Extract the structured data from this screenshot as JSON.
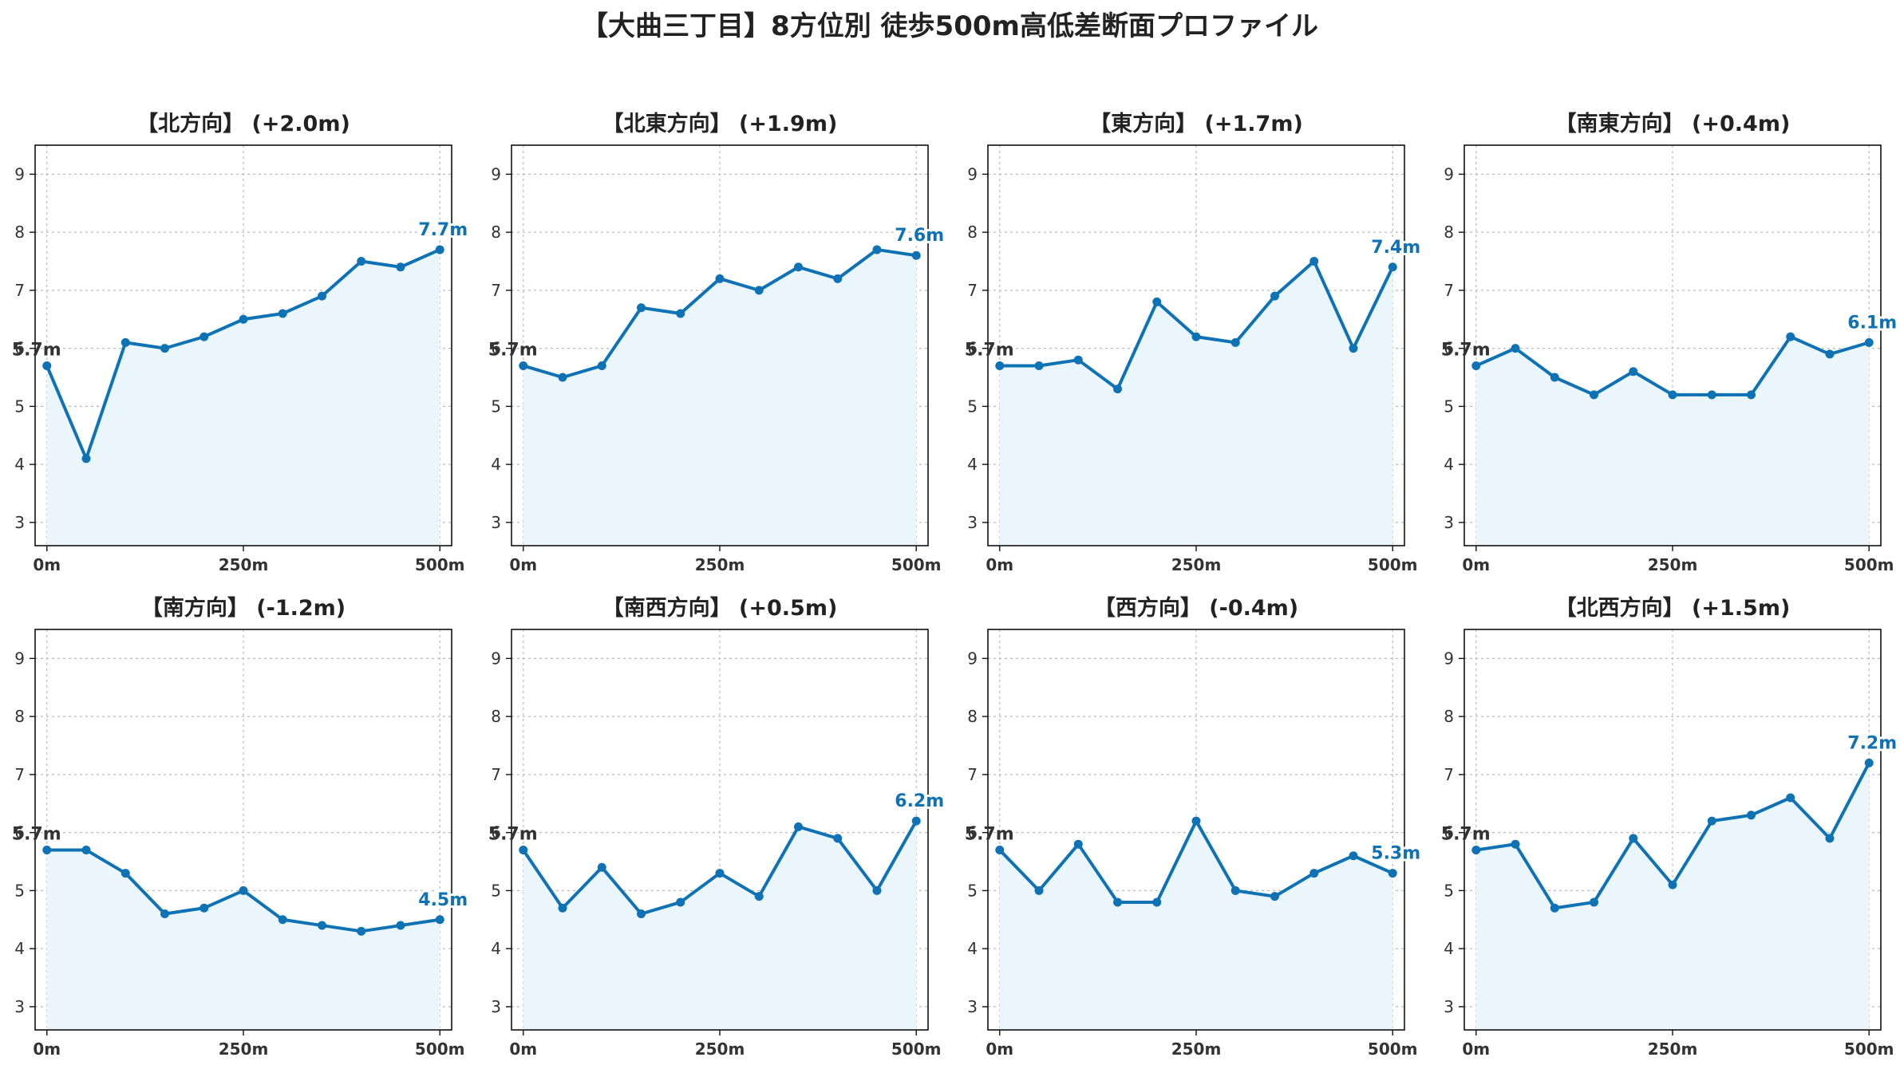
{
  "figure": {
    "title": "【大曲三丁目】8方位別 徒歩500m高低差断面プロファイル",
    "line_color": "#0e72b4",
    "fill_color": "#eaf6fb",
    "start_label_color": "#333333"
  },
  "chart_data": [
    {
      "type": "line",
      "title": "【北方向】 (+2.0m)",
      "x": [
        0,
        50,
        100,
        150,
        200,
        250,
        300,
        350,
        400,
        450,
        500
      ],
      "y": [
        5.7,
        4.1,
        6.1,
        6.0,
        6.2,
        6.5,
        6.6,
        6.9,
        7.5,
        7.4,
        7.7
      ],
      "start_label": "5.7m",
      "end_label": "7.7m",
      "xticks": [
        0,
        250,
        500
      ],
      "xtick_labels": [
        "0m",
        "250m",
        "500m"
      ],
      "yticks": [
        3,
        4,
        5,
        6,
        7,
        8,
        9
      ],
      "xlim": [
        -15,
        515
      ],
      "ylim": [
        2.6,
        9.5
      ],
      "grid": true
    },
    {
      "type": "line",
      "title": "【北東方向】 (+1.9m)",
      "x": [
        0,
        50,
        100,
        150,
        200,
        250,
        300,
        350,
        400,
        450,
        500
      ],
      "y": [
        5.7,
        5.5,
        5.7,
        6.7,
        6.6,
        7.2,
        7.0,
        7.4,
        7.2,
        7.7,
        7.6
      ],
      "start_label": "5.7m",
      "end_label": "7.6m",
      "xticks": [
        0,
        250,
        500
      ],
      "xtick_labels": [
        "0m",
        "250m",
        "500m"
      ],
      "yticks": [
        3,
        4,
        5,
        6,
        7,
        8,
        9
      ],
      "xlim": [
        -15,
        515
      ],
      "ylim": [
        2.6,
        9.5
      ],
      "grid": true
    },
    {
      "type": "line",
      "title": "【東方向】 (+1.7m)",
      "x": [
        0,
        50,
        100,
        150,
        200,
        250,
        300,
        350,
        400,
        450,
        500
      ],
      "y": [
        5.7,
        5.7,
        5.8,
        5.3,
        6.8,
        6.2,
        6.1,
        6.9,
        7.5,
        6.0,
        7.4
      ],
      "start_label": "5.7m",
      "end_label": "7.4m",
      "xticks": [
        0,
        250,
        500
      ],
      "xtick_labels": [
        "0m",
        "250m",
        "500m"
      ],
      "yticks": [
        3,
        4,
        5,
        6,
        7,
        8,
        9
      ],
      "xlim": [
        -15,
        515
      ],
      "ylim": [
        2.6,
        9.5
      ],
      "grid": true
    },
    {
      "type": "line",
      "title": "【南東方向】 (+0.4m)",
      "x": [
        0,
        50,
        100,
        150,
        200,
        250,
        300,
        350,
        400,
        450,
        500
      ],
      "y": [
        5.7,
        6.0,
        5.5,
        5.2,
        5.6,
        5.2,
        5.2,
        5.2,
        6.2,
        5.9,
        6.1
      ],
      "start_label": "5.7m",
      "end_label": "6.1m",
      "xticks": [
        0,
        250,
        500
      ],
      "xtick_labels": [
        "0m",
        "250m",
        "500m"
      ],
      "yticks": [
        3,
        4,
        5,
        6,
        7,
        8,
        9
      ],
      "xlim": [
        -15,
        515
      ],
      "ylim": [
        2.6,
        9.5
      ],
      "grid": true
    },
    {
      "type": "line",
      "title": "【南方向】 (-1.2m)",
      "x": [
        0,
        50,
        100,
        150,
        200,
        250,
        300,
        350,
        400,
        450,
        500
      ],
      "y": [
        5.7,
        5.7,
        5.3,
        4.6,
        4.7,
        5.0,
        4.5,
        4.4,
        4.3,
        4.4,
        4.5
      ],
      "start_label": "5.7m",
      "end_label": "4.5m",
      "xticks": [
        0,
        250,
        500
      ],
      "xtick_labels": [
        "0m",
        "250m",
        "500m"
      ],
      "yticks": [
        3,
        4,
        5,
        6,
        7,
        8,
        9
      ],
      "xlim": [
        -15,
        515
      ],
      "ylim": [
        2.6,
        9.5
      ],
      "grid": true
    },
    {
      "type": "line",
      "title": "【南西方向】 (+0.5m)",
      "x": [
        0,
        50,
        100,
        150,
        200,
        250,
        300,
        350,
        400,
        450,
        500
      ],
      "y": [
        5.7,
        4.7,
        5.4,
        4.6,
        4.8,
        5.3,
        4.9,
        6.1,
        5.9,
        5.0,
        6.2
      ],
      "start_label": "5.7m",
      "end_label": "6.2m",
      "xticks": [
        0,
        250,
        500
      ],
      "xtick_labels": [
        "0m",
        "250m",
        "500m"
      ],
      "yticks": [
        3,
        4,
        5,
        6,
        7,
        8,
        9
      ],
      "xlim": [
        -15,
        515
      ],
      "ylim": [
        2.6,
        9.5
      ],
      "grid": true
    },
    {
      "type": "line",
      "title": "【西方向】 (-0.4m)",
      "x": [
        0,
        50,
        100,
        150,
        200,
        250,
        300,
        350,
        400,
        450,
        500
      ],
      "y": [
        5.7,
        5.0,
        5.8,
        4.8,
        4.8,
        6.2,
        5.0,
        4.9,
        5.3,
        5.6,
        5.3
      ],
      "start_label": "5.7m",
      "end_label": "5.3m",
      "xticks": [
        0,
        250,
        500
      ],
      "xtick_labels": [
        "0m",
        "250m",
        "500m"
      ],
      "yticks": [
        3,
        4,
        5,
        6,
        7,
        8,
        9
      ],
      "xlim": [
        -15,
        515
      ],
      "ylim": [
        2.6,
        9.5
      ],
      "grid": true
    },
    {
      "type": "line",
      "title": "【北西方向】 (+1.5m)",
      "x": [
        0,
        50,
        100,
        150,
        200,
        250,
        300,
        350,
        400,
        450,
        500
      ],
      "y": [
        5.7,
        5.8,
        4.7,
        4.8,
        5.9,
        5.1,
        6.2,
        6.3,
        6.6,
        5.9,
        7.2
      ],
      "start_label": "5.7m",
      "end_label": "7.2m",
      "xticks": [
        0,
        250,
        500
      ],
      "xtick_labels": [
        "0m",
        "250m",
        "500m"
      ],
      "yticks": [
        3,
        4,
        5,
        6,
        7,
        8,
        9
      ],
      "xlim": [
        -15,
        515
      ],
      "ylim": [
        2.6,
        9.5
      ],
      "grid": true
    }
  ]
}
